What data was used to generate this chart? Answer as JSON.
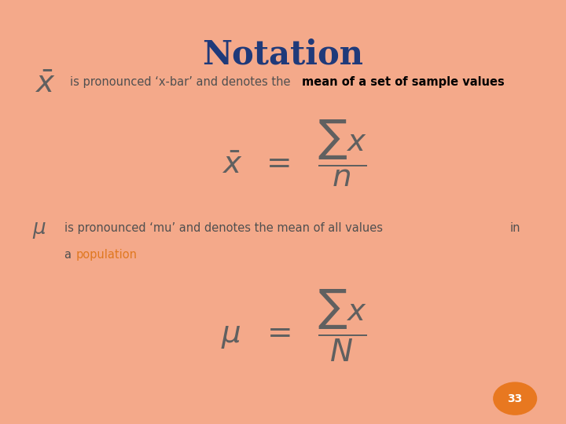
{
  "title": "Notation",
  "title_color": "#1F3A7A",
  "title_fontsize": 30,
  "bg_color": "#FFFFFF",
  "border_color": "#F4A98A",
  "text_color_gray": "#606060",
  "text_color_dark": "#505050",
  "text_color_bold": "#000000",
  "text_color_orange": "#E07820",
  "badge_number": "33",
  "badge_color": "#E87820",
  "badge_text_color": "#FFFFFF",
  "line1_desc_normal": "is pronounced ‘x-bar’ and denotes the ",
  "line1_desc_bold": "mean of a set of sample values",
  "line2_desc": "is pronounced ‘mu’ and denotes the mean of all values",
  "line2_in": "in",
  "line2_a": "a ",
  "line2_pop": "population"
}
